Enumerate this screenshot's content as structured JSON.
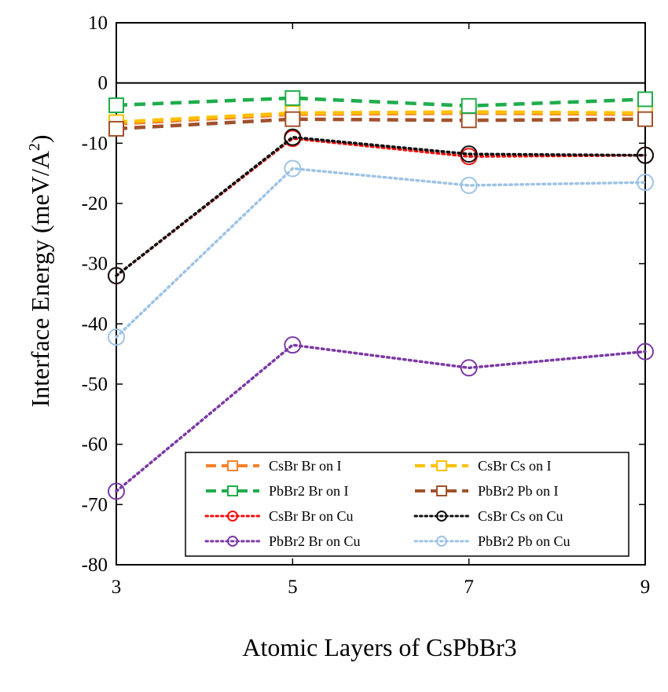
{
  "chart_data": {
    "type": "line",
    "title": "",
    "xlabel": "Atomic Layers of CsPbBr3",
    "ylabel_main": "Interface Energy (meV/A",
    "ylabel_sup": "2",
    "ylabel_close": ")",
    "x": [
      3,
      5,
      7,
      9
    ],
    "xlim": [
      3,
      9
    ],
    "ylim": [
      -80,
      10
    ],
    "x_ticks": [
      3,
      5,
      7,
      9
    ],
    "y_ticks": [
      10,
      0,
      -10,
      -20,
      -30,
      -40,
      -50,
      -60,
      -70,
      -80
    ],
    "grid": false,
    "legend_position": "lower-right",
    "series": [
      {
        "name": "CsBr Br on I",
        "values": [
          -6.8,
          -5.2,
          -5.0,
          -5.2
        ],
        "color": "#f5822a",
        "line": "dashed",
        "marker": "square"
      },
      {
        "name": "CsBr Cs on I",
        "values": [
          -6.5,
          -5.0,
          -4.8,
          -5.0
        ],
        "color": "#ffc000",
        "line": "dashed",
        "marker": "square"
      },
      {
        "name": "PbBr2 Br on I",
        "values": [
          -3.7,
          -2.5,
          -3.8,
          -2.7
        ],
        "color": "#1fad4c",
        "line": "dashed",
        "marker": "square"
      },
      {
        "name": "PbBr2 Pb on I",
        "values": [
          -7.6,
          -6.0,
          -6.2,
          -6.0
        ],
        "color": "#a0522d",
        "line": "dashed",
        "marker": "square"
      },
      {
        "name": "CsBr Br on Cu",
        "values": [
          -32.0,
          -9.2,
          -12.2,
          -12.0
        ],
        "color": "#ee1111",
        "line": "dotted",
        "marker": "circle"
      },
      {
        "name": "CsBr Cs on Cu",
        "values": [
          -32.0,
          -9.0,
          -11.8,
          -12.0
        ],
        "color": "#111111",
        "line": "dotted",
        "marker": "circle"
      },
      {
        "name": "PbBr2 Br on Cu",
        "values": [
          -67.8,
          -43.5,
          -47.3,
          -44.6
        ],
        "color": "#7b3aa5",
        "line": "dotted",
        "marker": "circle"
      },
      {
        "name": "PbBr2 Pb on Cu",
        "values": [
          -42.2,
          -14.2,
          -17.0,
          -16.5
        ],
        "color": "#9dc3e6",
        "line": "dotted",
        "marker": "circle"
      }
    ]
  }
}
